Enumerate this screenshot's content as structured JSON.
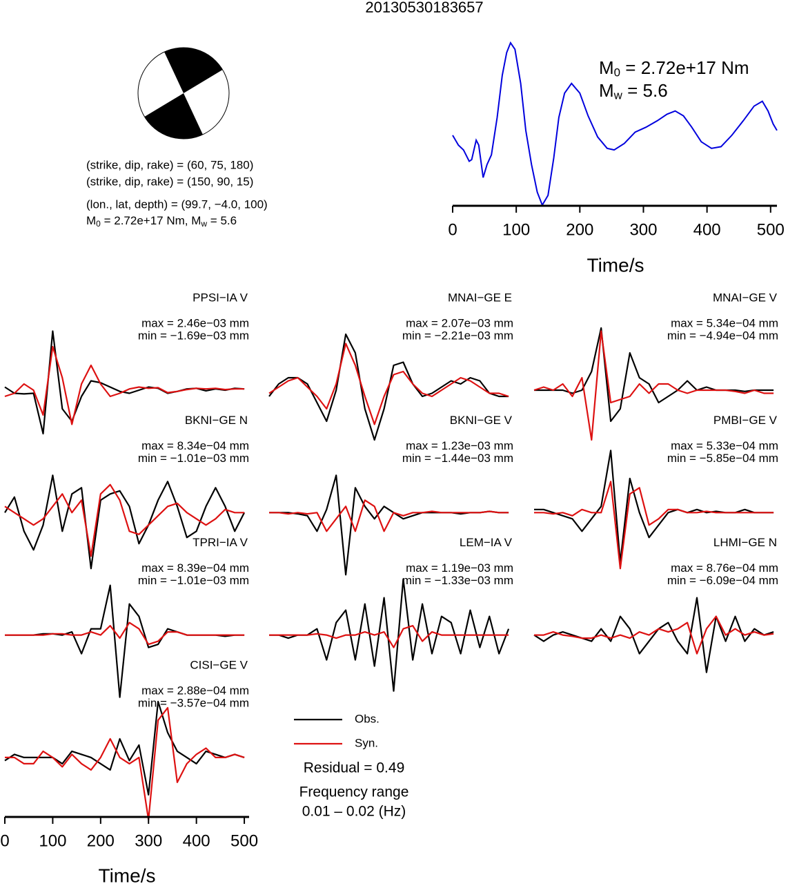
{
  "title": "20130530183657",
  "focal_info": {
    "plane1": "(strike, dip, rake) = (60, 75, 180)",
    "plane2": "(strike, dip, rake) = (150, 90, 15)",
    "location": "(lon., lat, depth) = (99.7, −4.0, 100)",
    "m0": {
      "symbol": "M",
      "sub": "0",
      "text": " = 2.72e+17 Nm, "
    },
    "mw": {
      "symbol": "M",
      "sub": "w",
      "text": " = 5.6"
    }
  },
  "chart_data": [
    {
      "type": "line",
      "color": "#0000dd",
      "x": [
        0,
        9,
        17,
        26,
        30,
        37,
        41,
        48,
        54,
        61,
        70,
        78,
        85,
        91,
        98,
        107,
        115,
        124,
        133,
        141,
        150,
        159,
        167,
        176,
        187,
        200,
        213,
        228,
        243,
        254,
        270,
        287,
        304,
        322,
        337,
        350,
        363,
        376,
        391,
        407,
        422,
        439,
        457,
        474,
        487,
        496,
        504,
        510
      ],
      "values": [
        0.43,
        0.37,
        0.34,
        0.27,
        0.28,
        0.4,
        0.37,
        0.17,
        0.25,
        0.31,
        0.54,
        0.8,
        0.94,
        1.0,
        0.96,
        0.75,
        0.46,
        0.25,
        0.08,
        0.0,
        0.06,
        0.29,
        0.54,
        0.69,
        0.75,
        0.69,
        0.55,
        0.42,
        0.35,
        0.34,
        0.38,
        0.45,
        0.48,
        0.52,
        0.56,
        0.58,
        0.55,
        0.48,
        0.39,
        0.35,
        0.36,
        0.43,
        0.52,
        0.61,
        0.64,
        0.58,
        0.5,
        0.46
      ],
      "xlim": [
        0,
        510
      ],
      "ylim": [
        0,
        1
      ],
      "xticks": [
        0,
        100,
        200,
        300,
        400,
        500
      ],
      "xlabel": "Time/s",
      "annotations": [
        {
          "symbol": "M",
          "sub": "0",
          "text": " = 2.72e+17 Nm"
        },
        {
          "symbol": "M",
          "sub": "w",
          "text": " = 5.6"
        }
      ]
    },
    {
      "type": "waveforms",
      "x": [
        0,
        20,
        40,
        60,
        80,
        100,
        120,
        140,
        160,
        180,
        200,
        220,
        240,
        260,
        280,
        300,
        320,
        340,
        360,
        380,
        400,
        420,
        440,
        460,
        480,
        500
      ],
      "xlim": [
        0,
        510
      ],
      "ylim": [
        -1,
        1
      ],
      "xticks": [
        0,
        100,
        200,
        300,
        400,
        500
      ],
      "xlabel": "Time/s",
      "series": [
        {
          "name": "Obs.",
          "color": "#000000"
        },
        {
          "name": "Syn.",
          "color": "#dd1111"
        }
      ],
      "panels": [
        {
          "station": "PPSI−IA V",
          "max_label": "max = 2.46e−03 mm",
          "min_label": "min = −1.69e−03 mm",
          "obs": [
            0.05,
            -0.05,
            -0.06,
            -0.05,
            -0.7,
            0.95,
            -0.3,
            -0.5,
            -0.1,
            0.15,
            0.12,
            0.05,
            -0.02,
            -0.05,
            0.0,
            0.05,
            0.03,
            -0.05,
            -0.02,
            0.02,
            0.03,
            -0.01,
            0.02,
            0.0,
            0.03,
            0.02
          ],
          "syn": [
            -0.1,
            -0.05,
            0.1,
            0.0,
            -0.4,
            0.7,
            0.2,
            -0.55,
            0.1,
            0.4,
            0.1,
            -0.1,
            -0.05,
            0.02,
            0.05,
            0.03,
            0.04,
            -0.04,
            -0.02,
            0.01,
            0.03,
            0.02,
            0.03,
            0.01,
            0.02,
            0.02
          ]
        },
        {
          "station": "MNAI−GE E",
          "max_label": "max = 2.07e−03 mm",
          "min_label": "min = −2.21e−03 mm",
          "obs": [
            -0.1,
            0.1,
            0.2,
            0.2,
            0.1,
            -0.2,
            -0.5,
            0.0,
            0.9,
            0.6,
            -0.3,
            -0.8,
            -0.3,
            0.4,
            0.45,
            0.1,
            -0.1,
            -0.05,
            0.05,
            0.15,
            0.1,
            0.2,
            0.15,
            -0.05,
            -0.1,
            -0.1
          ],
          "syn": [
            -0.05,
            0.05,
            0.15,
            0.2,
            0.05,
            -0.1,
            -0.3,
            0.1,
            0.75,
            0.4,
            -0.1,
            -0.55,
            -0.1,
            0.25,
            0.3,
            0.1,
            -0.05,
            -0.1,
            0.0,
            0.1,
            0.2,
            0.15,
            0.05,
            -0.05,
            -0.05,
            -0.1
          ]
        },
        {
          "station": "MNAI−GE V",
          "max_label": "max = 5.34e−04 mm",
          "min_label": "min = −4.94e−04 mm",
          "obs": [
            0.0,
            0.0,
            0.0,
            0.0,
            -0.05,
            0.0,
            0.3,
            1.0,
            -0.5,
            -0.3,
            0.6,
            0.2,
            0.1,
            -0.2,
            -0.1,
            0.0,
            0.15,
            0.0,
            0.05,
            0.0,
            0.0,
            0.0,
            -0.02,
            0.0,
            0.0,
            0.0
          ],
          "syn": [
            0.0,
            0.05,
            0.0,
            0.1,
            -0.1,
            0.2,
            -0.8,
            0.95,
            -0.2,
            -0.15,
            -0.1,
            0.1,
            -0.05,
            0.1,
            0.1,
            0.0,
            -0.05,
            0.0,
            0.0,
            0.0,
            0.0,
            -0.02,
            -0.05,
            0.0,
            -0.05,
            -0.05
          ]
        },
        {
          "station": "BKNI−GE N",
          "max_label": "max = 8.34e−04 mm",
          "min_label": "min = −1.01e−03 mm",
          "obs": [
            0.0,
            0.25,
            -0.3,
            -0.6,
            -0.2,
            0.6,
            -0.3,
            0.3,
            0.4,
            -0.9,
            0.2,
            0.3,
            0.35,
            0.1,
            -0.5,
            -0.2,
            0.2,
            0.5,
            0.1,
            -0.4,
            -0.3,
            0.1,
            0.4,
            0.1,
            -0.3,
            0.0
          ],
          "syn": [
            0.1,
            0.0,
            -0.1,
            -0.2,
            -0.1,
            0.1,
            0.3,
            0.0,
            0.2,
            -0.7,
            0.3,
            0.45,
            0.2,
            -0.3,
            -0.35,
            -0.2,
            -0.05,
            0.1,
            0.15,
            0.0,
            -0.1,
            -0.2,
            -0.1,
            0.05,
            0.0,
            0.0
          ]
        },
        {
          "station": "BKNI−GE V",
          "max_label": "max = 1.23e−03 mm",
          "min_label": "min = −1.44e−03 mm",
          "obs": [
            0.0,
            0.0,
            0.0,
            -0.02,
            -0.05,
            -0.3,
            0.05,
            0.6,
            -1.0,
            0.4,
            0.1,
            -0.1,
            0.1,
            0.0,
            -0.1,
            -0.05,
            0.0,
            0.0,
            0.0,
            0.0,
            -0.02,
            0.0,
            0.0,
            0.02,
            0.0,
            0.0
          ],
          "syn": [
            0.0,
            0.0,
            -0.02,
            0.0,
            -0.02,
            0.0,
            -0.3,
            -0.1,
            0.1,
            -0.3,
            0.2,
            0.1,
            -0.3,
            0.0,
            -0.05,
            0.0,
            0.0,
            0.02,
            0.0,
            0.0,
            0.0,
            0.0,
            0.0,
            0.02,
            0.0,
            0.0
          ]
        },
        {
          "station": "PMBI−GE V",
          "max_label": "max = 5.33e−04 mm",
          "min_label": "min = −5.85e−04 mm",
          "obs": [
            0.05,
            0.05,
            0.0,
            -0.05,
            -0.1,
            -0.3,
            -0.1,
            0.1,
            1.0,
            -0.8,
            0.55,
            0.0,
            -0.4,
            -0.2,
            0.0,
            0.05,
            0.0,
            0.05,
            0.0,
            0.02,
            0.0,
            0.0,
            0.05,
            0.0,
            0.0,
            0.0
          ],
          "syn": [
            0.0,
            0.0,
            -0.02,
            0.0,
            -0.05,
            0.05,
            0.0,
            0.0,
            0.5,
            -0.9,
            0.3,
            0.4,
            -0.2,
            -0.1,
            0.05,
            0.05,
            0.0,
            0.0,
            0.02,
            0.0,
            0.0,
            0.0,
            0.0,
            0.0,
            0.0,
            0.0
          ]
        },
        {
          "station": "TPRI−IA V",
          "max_label": "max = 8.39e−04 mm",
          "min_label": "min = −1.01e−03 mm",
          "obs": [
            0.0,
            0.0,
            0.0,
            0.0,
            0.02,
            0.02,
            0.0,
            0.05,
            -0.3,
            0.1,
            0.1,
            0.8,
            -1.0,
            0.5,
            0.3,
            -0.2,
            -0.15,
            0.1,
            0.05,
            0.0,
            0.0,
            0.0,
            0.0,
            -0.02,
            0.0,
            0.0
          ],
          "syn": [
            0.0,
            0.0,
            0.0,
            0.0,
            0.0,
            0.02,
            0.02,
            0.0,
            0.0,
            0.05,
            0.0,
            0.15,
            -0.05,
            0.2,
            0.1,
            -0.15,
            -0.1,
            0.05,
            0.05,
            0.0,
            0.0,
            0.0,
            0.0,
            0.0,
            0.0,
            0.0
          ]
        },
        {
          "station": "LEM−IA V",
          "max_label": "max = 1.19e−03 mm",
          "min_label": "min = −1.33e−03 mm",
          "obs": [
            0.0,
            0.0,
            -0.05,
            0.0,
            0.0,
            0.1,
            -0.4,
            0.2,
            0.4,
            -0.4,
            0.5,
            -0.5,
            0.6,
            -0.9,
            0.9,
            -0.4,
            0.5,
            -0.3,
            0.3,
            0.2,
            -0.3,
            0.4,
            -0.2,
            0.3,
            -0.3,
            0.1
          ],
          "syn": [
            0.0,
            0.0,
            0.0,
            0.0,
            0.0,
            0.02,
            0.0,
            -0.05,
            0.0,
            0.0,
            0.05,
            0.0,
            0.05,
            -0.2,
            0.1,
            0.15,
            -0.1,
            0.05,
            0.0,
            0.0,
            0.0,
            0.0,
            0.0,
            0.0,
            0.0,
            0.0
          ]
        },
        {
          "station": "LHMI−GE N",
          "max_label": "max = 8.76e−04 mm",
          "min_label": "min = −6.09e−04 mm",
          "obs": [
            0.0,
            -0.1,
            0.0,
            0.05,
            0.0,
            -0.05,
            -0.1,
            0.1,
            -0.1,
            0.3,
            0.1,
            -0.3,
            -0.1,
            0.1,
            0.2,
            -0.1,
            -0.3,
            0.6,
            -0.6,
            0.3,
            -0.1,
            0.3,
            -0.1,
            0.1,
            0.0,
            0.05
          ],
          "syn": [
            0.0,
            0.0,
            0.05,
            0.0,
            -0.02,
            -0.05,
            -0.05,
            0.0,
            -0.05,
            0.0,
            -0.05,
            0.05,
            0.0,
            0.1,
            0.05,
            0.1,
            0.2,
            -0.3,
            0.1,
            0.3,
            0.0,
            0.1,
            0.0,
            0.05,
            0.0,
            0.02
          ]
        },
        {
          "station": "CISI−GE V",
          "max_label": "max = 2.88e−04 mm",
          "min_label": "min = −3.57e−04 mm",
          "obs": [
            -0.05,
            0.05,
            0.0,
            0.0,
            0.0,
            0.0,
            -0.1,
            0.1,
            0.05,
            0.0,
            -0.1,
            -0.2,
            0.3,
            -0.05,
            0.2,
            -0.6,
            0.9,
            0.4,
            0.1,
            0.0,
            -0.1,
            0.1,
            0.05,
            0.0,
            0.05,
            0.0
          ],
          "syn": [
            0.0,
            0.0,
            -0.1,
            -0.1,
            0.1,
            0.0,
            -0.15,
            0.05,
            -0.1,
            -0.2,
            0.0,
            0.3,
            0.0,
            -0.1,
            0.0,
            -1.0,
            0.6,
            0.8,
            -0.4,
            -0.1,
            0.05,
            0.15,
            0.0,
            0.0,
            0.05,
            0.0
          ]
        }
      ],
      "residual": "Residual = 0.49",
      "frequency": [
        "Frequency range",
        "0.01 – 0.02 (Hz)"
      ]
    }
  ]
}
